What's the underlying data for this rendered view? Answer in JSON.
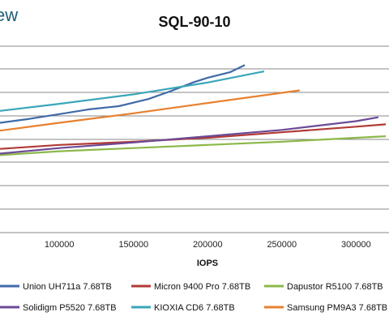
{
  "brand": {
    "partial_text": "ew"
  },
  "chart_data": {
    "type": "line",
    "title": "SQL-90-10",
    "xlabel": "IOPS",
    "ylabel": "",
    "x_ticks": [
      {
        "value": 100000,
        "label": "100000"
      },
      {
        "value": 150000,
        "label": "150000"
      },
      {
        "value": 200000,
        "label": "200000"
      },
      {
        "value": 250000,
        "label": "250000"
      },
      {
        "value": 300000,
        "label": "300000"
      }
    ],
    "xlim": [
      60000,
      320000
    ],
    "ylim": [
      0,
      10
    ],
    "grid": true,
    "legend_position": "bottom",
    "series": [
      {
        "name": "Union UH711a 7.68TB",
        "color": "#3f6aa8",
        "x": [
          60000,
          80000,
          100000,
          120000,
          140000,
          160000,
          175000,
          190000,
          200000,
          215000,
          225000
        ],
        "y": [
          6.95,
          7.2,
          7.5,
          7.8,
          8.0,
          8.45,
          8.95,
          9.5,
          9.8,
          10.15,
          10.6
        ]
      },
      {
        "name": "Micron 9400 Pro 7.68TB",
        "color": "#b03a35",
        "x": [
          60000,
          100000,
          150000,
          200000,
          250000,
          300000,
          320000
        ],
        "y": [
          5.3,
          5.55,
          5.75,
          6.0,
          6.35,
          6.7,
          6.85
        ]
      },
      {
        "name": "Dapustor R5100 7.68TB",
        "color": "#8cb84a",
        "x": [
          60000,
          100000,
          150000,
          200000,
          250000,
          300000,
          320000
        ],
        "y": [
          4.9,
          5.15,
          5.35,
          5.55,
          5.75,
          6.0,
          6.1
        ]
      },
      {
        "name": "Solidigm P5520 7.68TB",
        "color": "#6b4a96",
        "x": [
          60000,
          100000,
          150000,
          200000,
          250000,
          300000,
          315000
        ],
        "y": [
          5.0,
          5.35,
          5.7,
          6.1,
          6.5,
          7.05,
          7.3
        ]
      },
      {
        "name": "KIOXIA CD6 7.68TB",
        "color": "#3aa6b9",
        "x": [
          60000,
          100000,
          150000,
          200000,
          238000
        ],
        "y": [
          7.7,
          8.15,
          8.75,
          9.5,
          10.2
        ]
      },
      {
        "name": "Samsung PM9A3 7.68TB",
        "color": "#e8802e",
        "x": [
          60000,
          100000,
          150000,
          200000,
          262000
        ],
        "y": [
          6.45,
          6.95,
          7.55,
          8.2,
          9.0
        ]
      }
    ]
  }
}
